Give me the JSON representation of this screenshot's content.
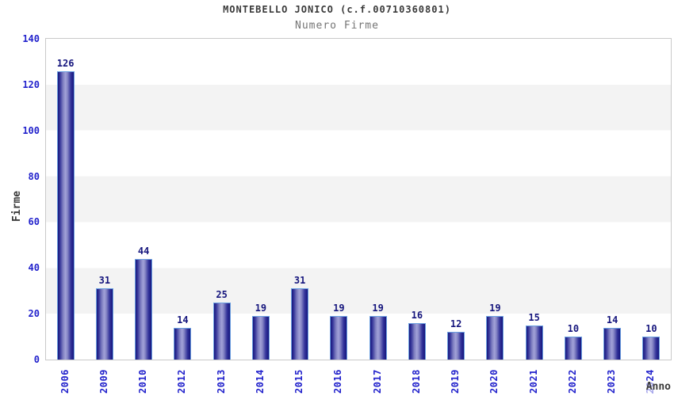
{
  "chart_data": {
    "type": "bar",
    "title": "MONTEBELLO JONICO (c.f.00710360801)",
    "subtitle": "Numero Firme",
    "xlabel": "Anno",
    "ylabel": "Firme",
    "categories": [
      "2006",
      "2009",
      "2010",
      "2012",
      "2013",
      "2014",
      "2015",
      "2016",
      "2017",
      "2018",
      "2019",
      "2020",
      "2021",
      "2022",
      "2023",
      "2024"
    ],
    "values": [
      126,
      31,
      44,
      14,
      25,
      19,
      31,
      19,
      19,
      16,
      12,
      19,
      15,
      10,
      14,
      10
    ],
    "ylim": [
      0,
      140
    ],
    "ytick_step": 20,
    "grid": "horizontal-bands-alternating",
    "legend": "none"
  },
  "colors": {
    "title_color": "#3a3a3a",
    "subtitle_color": "#757575",
    "axis_title_color": "#3a3a3a",
    "axis_label_blue": "#2222cc",
    "value_label_navy": "#15157d",
    "bar_dark": "#15157d",
    "bar_light": "#a2a2d8",
    "bar_edge": "#6b9fe0",
    "band_gray": "#f3f3f3",
    "plot_border": "#c9c9c9",
    "background": "#ffffff"
  }
}
